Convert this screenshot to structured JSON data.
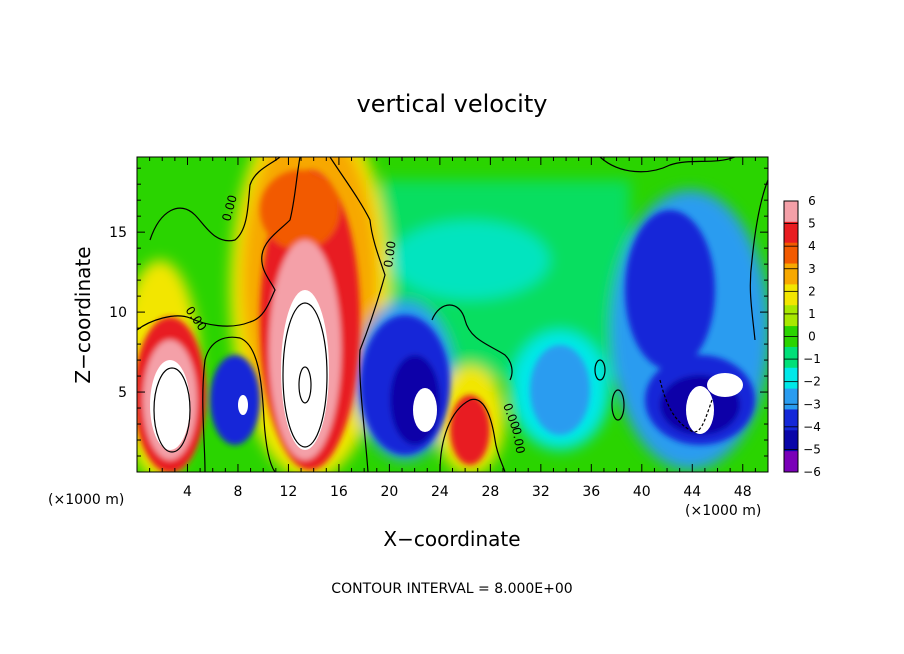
{
  "chart_data": {
    "type": "heatmap",
    "title": "vertical velocity",
    "xlabel": "X−coordinate",
    "ylabel": "Z−coordinate",
    "x_units": "(×1000 m)",
    "y_units": "(×1000 m)",
    "xlim": [
      0,
      50
    ],
    "ylim": [
      0,
      19.7
    ],
    "x_ticks": [
      "4",
      "8",
      "12",
      "16",
      "20",
      "24",
      "28",
      "32",
      "36",
      "40",
      "44",
      "48"
    ],
    "y_ticks": [
      "5",
      "10",
      "15"
    ],
    "colorbar": {
      "labels": [
        "6",
        "5",
        "4",
        "3",
        "2",
        "1",
        "0",
        "−1",
        "−2",
        "−3",
        "−4",
        "−5",
        "−6"
      ],
      "colors": [
        "#f4a0a8",
        "#e81c20",
        "#f25a00",
        "#f7a800",
        "#f2e600",
        "#a8e800",
        "#2ad400",
        "#00e078",
        "#00e8e8",
        "#2a9cf0",
        "#1428d8",
        "#0a06a8",
        "#7a00b8"
      ]
    },
    "contour_labels": [
      "0.00",
      "0.00",
      "0.00",
      "0.00",
      "0.00"
    ],
    "annotation": "CONTOUR INTERVAL = 8.000E+00",
    "cells": [
      {
        "x": [
          0,
          5
        ],
        "z": [
          0,
          10
        ],
        "w": 6
      },
      {
        "x": [
          6,
          10
        ],
        "z": [
          1,
          8
        ],
        "w": -5
      },
      {
        "x": [
          10,
          17
        ],
        "z": [
          0,
          19.7
        ],
        "w": 6
      },
      {
        "x": [
          18,
          24
        ],
        "z": [
          1,
          10
        ],
        "w": -6
      },
      {
        "x": [
          24,
          30
        ],
        "z": [
          0,
          6
        ],
        "w": 4
      },
      {
        "x": [
          31,
          37
        ],
        "z": [
          1,
          8
        ],
        "w": -3
      },
      {
        "x": [
          39,
          49
        ],
        "z": [
          1,
          16
        ],
        "w": -5
      },
      {
        "x": [
          18,
          30
        ],
        "z": [
          12,
          17
        ],
        "w": -2
      }
    ]
  }
}
